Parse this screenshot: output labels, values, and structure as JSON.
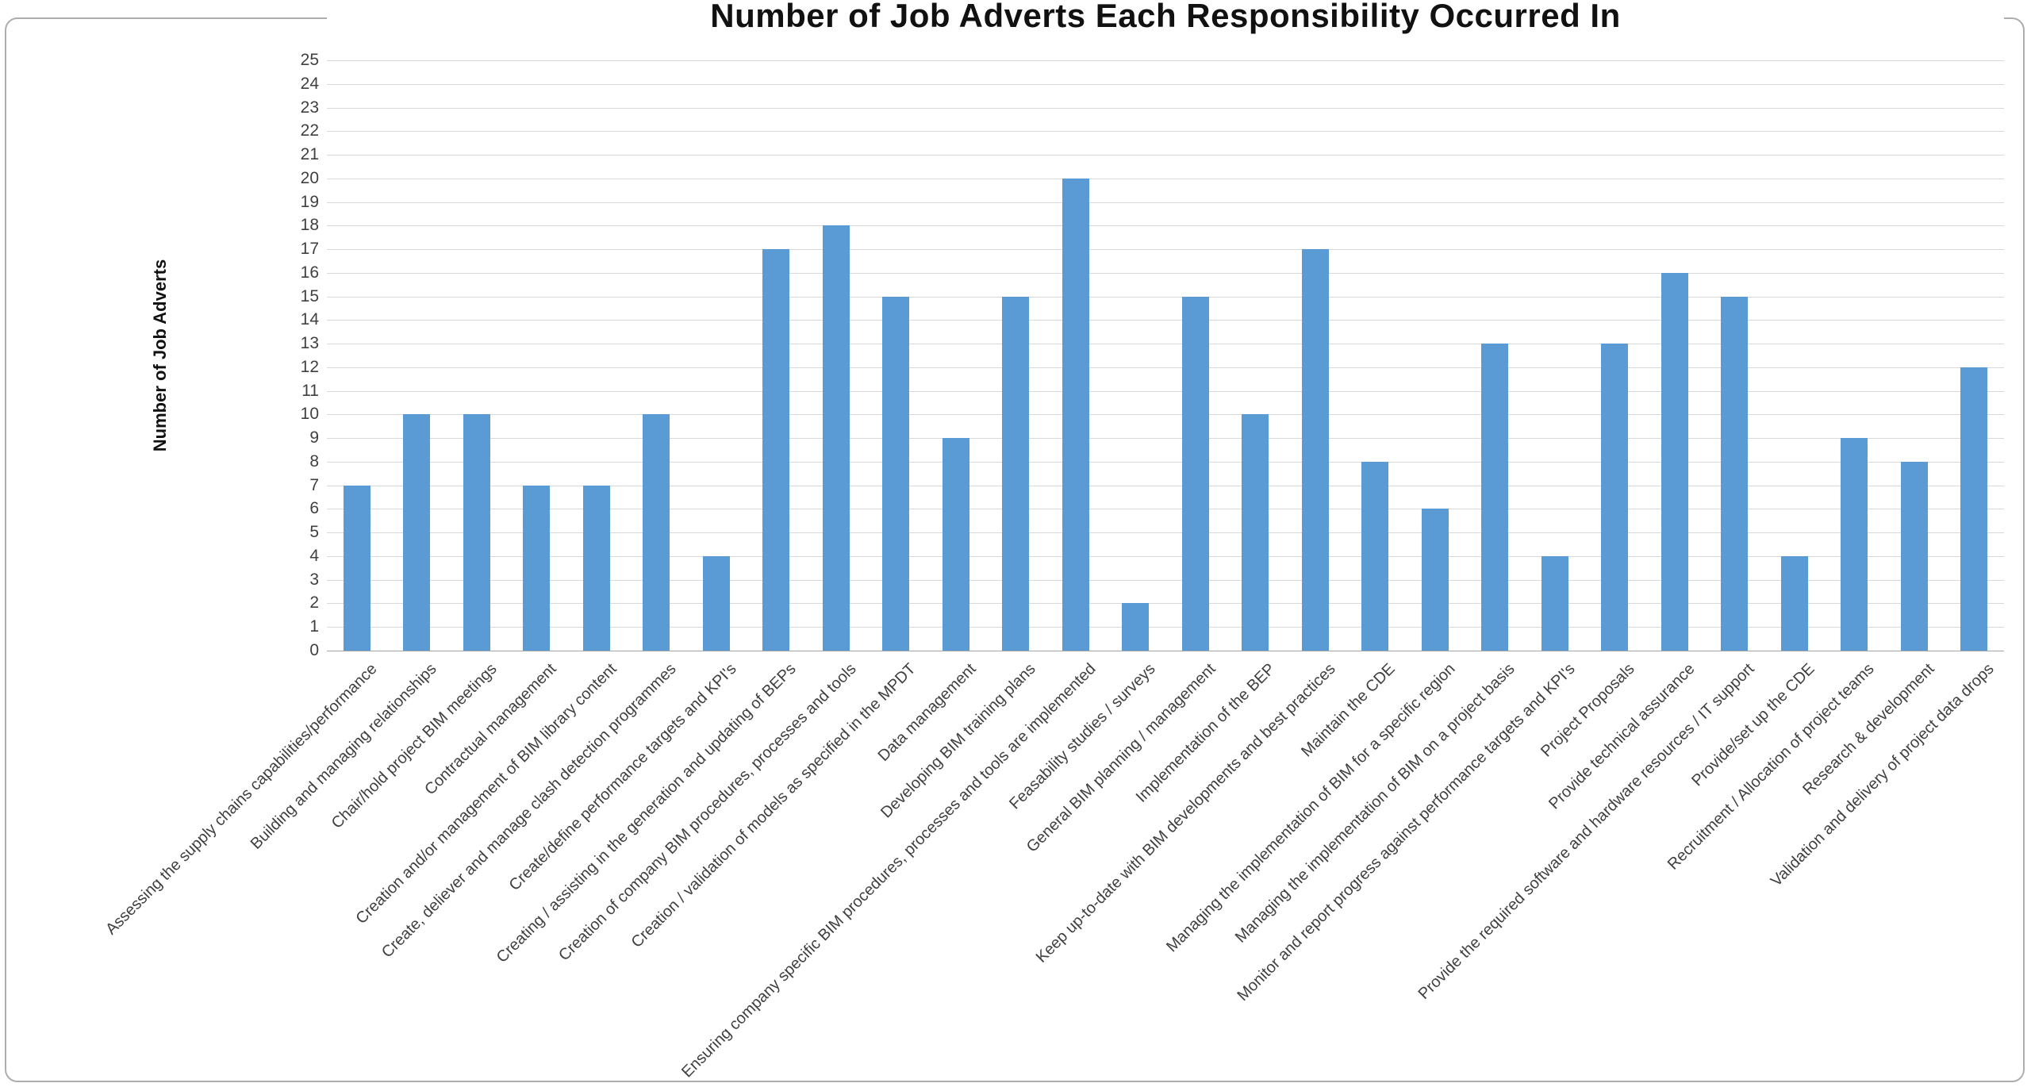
{
  "frame": {
    "background": "#ffffff",
    "border_color": "#adadad"
  },
  "chart_data": {
    "type": "bar",
    "title": "Number of Job Adverts Each Responsibility Occurred In",
    "xlabel": "",
    "ylabel": "Number of Job Adverts",
    "ylim": [
      0,
      25
    ],
    "ytick_step": 1,
    "grid": true,
    "legend_position": "none",
    "bar_color": "#5b9bd5",
    "gridline_color": "#d9d9d9",
    "axis_line_color": "#a6a6a6",
    "tick_label_color": "#404040",
    "categories": [
      "Assessing the supply chains capabilities/performance",
      "Building and managing relationships",
      "Chair/hold project BIM meetings",
      "Contractual management",
      "Creation and/or management of BIM library content",
      "Create, deliever and manage clash detection programmes",
      "Create/define performance targets and KPI's",
      "Creating / assisting in the generation and updating of BEPs",
      "Creation of company BIM procedures, processes and tools",
      "Creation / validation of models as specified in the MPDT",
      "Data management",
      "Developing BIM training plans",
      "Ensuring company specific BIM procedures, processes and tools are implemented",
      "Feasability studies / surveys",
      "General BIM planning / management",
      "Implementation of the BEP",
      "Keep up-to-date with BIM developments and best practices",
      "Maintain the CDE",
      "Managing the implementation of BIM for a specific region",
      "Managing the implementation of BIM on a project basis",
      "Monitor and report progress against performance targets and KPI's",
      "Project Proposals",
      "Provide technical assurance",
      "Provide the required software and hardware resources / IT support",
      "Provide/set up the CDE",
      "Recruitment / Allocation of project teams",
      "Research & development",
      "Validation and delivery of project data drops"
    ],
    "values": [
      7,
      10,
      10,
      7,
      7,
      10,
      4,
      17,
      18,
      15,
      9,
      15,
      20,
      2,
      15,
      10,
      17,
      8,
      6,
      13,
      4,
      13,
      16,
      15,
      4,
      9,
      8,
      12
    ]
  }
}
